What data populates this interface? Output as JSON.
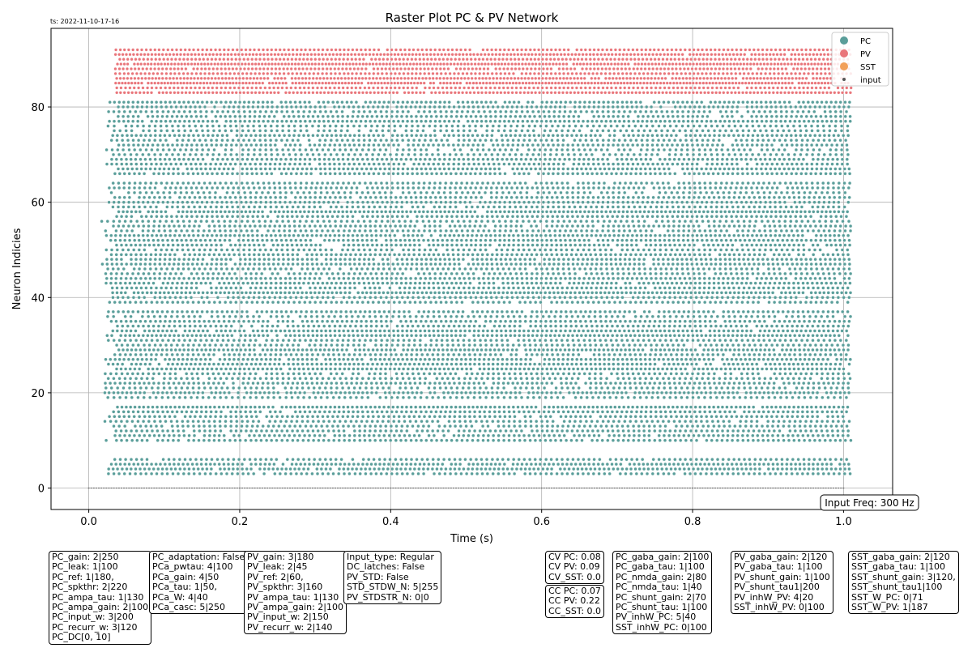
{
  "timestamp": "ts: 2022-11-10-17-16",
  "chart_data": {
    "type": "scatter",
    "title": "Raster Plot PC & PV Network",
    "xlabel": "Time (s)",
    "ylabel": "Neuron Indicies",
    "xlim": [
      -0.05,
      1.065
    ],
    "ylim": [
      -4.5,
      96.5
    ],
    "xticks": [
      0.0,
      0.2,
      0.4,
      0.6,
      0.8,
      1.0
    ],
    "xtick_labels": [
      "0.0",
      "0.2",
      "0.4",
      "0.6",
      "0.8",
      "1.0"
    ],
    "yticks": [
      0,
      20,
      40,
      60,
      80
    ],
    "ytick_labels": [
      "0",
      "20",
      "40",
      "60",
      "80"
    ],
    "grid": true,
    "legend_position": "top-right",
    "colors": {
      "PC": "#5a9e9a",
      "PV": "#e9757a",
      "SST": "#f2a05a",
      "input": "#555555"
    },
    "series": [
      {
        "name": "PC",
        "neuron_range": [
          3,
          81
        ],
        "time_range": [
          0.02,
          1.01
        ],
        "spike_interval_s": 0.0066
      },
      {
        "name": "PV",
        "neuron_range": [
          83,
          92
        ],
        "time_range": [
          0.035,
          1.01
        ],
        "spike_interval_s": 0.005
      },
      {
        "name": "SST",
        "neuron_range": [],
        "time_range": []
      },
      {
        "name": "input",
        "neuron_range": [
          0,
          0
        ],
        "time_range": [
          0.0,
          1.0
        ],
        "spike_interval_s": 0.003333
      }
    ],
    "annotation": "Input Freq: 300 Hz"
  },
  "param_boxes": [
    {
      "lines": [
        "PC_gain: 2|250",
        "PC_leak: 1|100",
        "PC_ref: 1|180,",
        "PC_spkthr: 2|220",
        "PC_ampa_tau: 1|130",
        "PC_ampa_gain: 2|100",
        "PC_input_w: 3|200",
        "PC_recurr_w: 3|120",
        "PC_DC[0, 10]"
      ]
    },
    {
      "lines": [
        "PC_adaptation: False",
        "PCa_pwtau: 4|100",
        "PCa_gain: 4|50",
        "PCa_tau: 1|50,",
        "PCa_W: 4|40",
        "PCa_casc: 5|250"
      ]
    },
    {
      "lines": [
        "PV_gain: 3|180",
        "PV_leak: 2|45",
        "PV_ref: 2|60,",
        "PV_spkthr: 3|160",
        "PV_ampa_tau: 1|130",
        "PV_ampa_gain: 2|100",
        "PV_input_w: 2|150",
        "PV_recurr_w: 2|140"
      ]
    },
    {
      "lines": [
        "Input_type: Regular",
        "DC_latches: False",
        "PV_STD: False",
        "STD_STDW_N: 5|255",
        "PV_STDSTR_N: 0|0"
      ]
    },
    {
      "lines": [
        "CV PC: 0.08",
        "CV PV: 0.09",
        "CV_SST: 0.0"
      ]
    },
    {
      "lines": [
        "CC PC: 0.07",
        "CC PV: 0.22",
        "CC_SST: 0.0"
      ]
    },
    {
      "lines": [
        "PC_gaba_gain: 2|100",
        "PC_gaba_tau: 1|100",
        "PC_nmda_gain: 2|80",
        "PC_nmda_tau: 1|40",
        "PC_shunt_gain: 2|70",
        "PC_shunt_tau: 1|100",
        "PV_inhW_PC: 5|40",
        "SST_inhW_PC: 0|100"
      ]
    },
    {
      "lines": [
        "PV_gaba_gain: 2|120",
        "PV_gaba_tau: 1|100",
        "PV_shunt_gain: 1|100",
        "PV_shunt_tau1|200",
        "PV_inhW_PV: 4|20",
        "SST_inhW_PV: 0|100"
      ]
    },
    {
      "lines": [
        "SST_gaba_gain: 2|120",
        "SST_gaba_tau: 1|100",
        "SST_shunt_gain: 3|120,",
        "SST_shunt_tau1|100",
        "SST_W_PC: 0|71",
        "SST_W_PV: 1|187"
      ]
    }
  ]
}
